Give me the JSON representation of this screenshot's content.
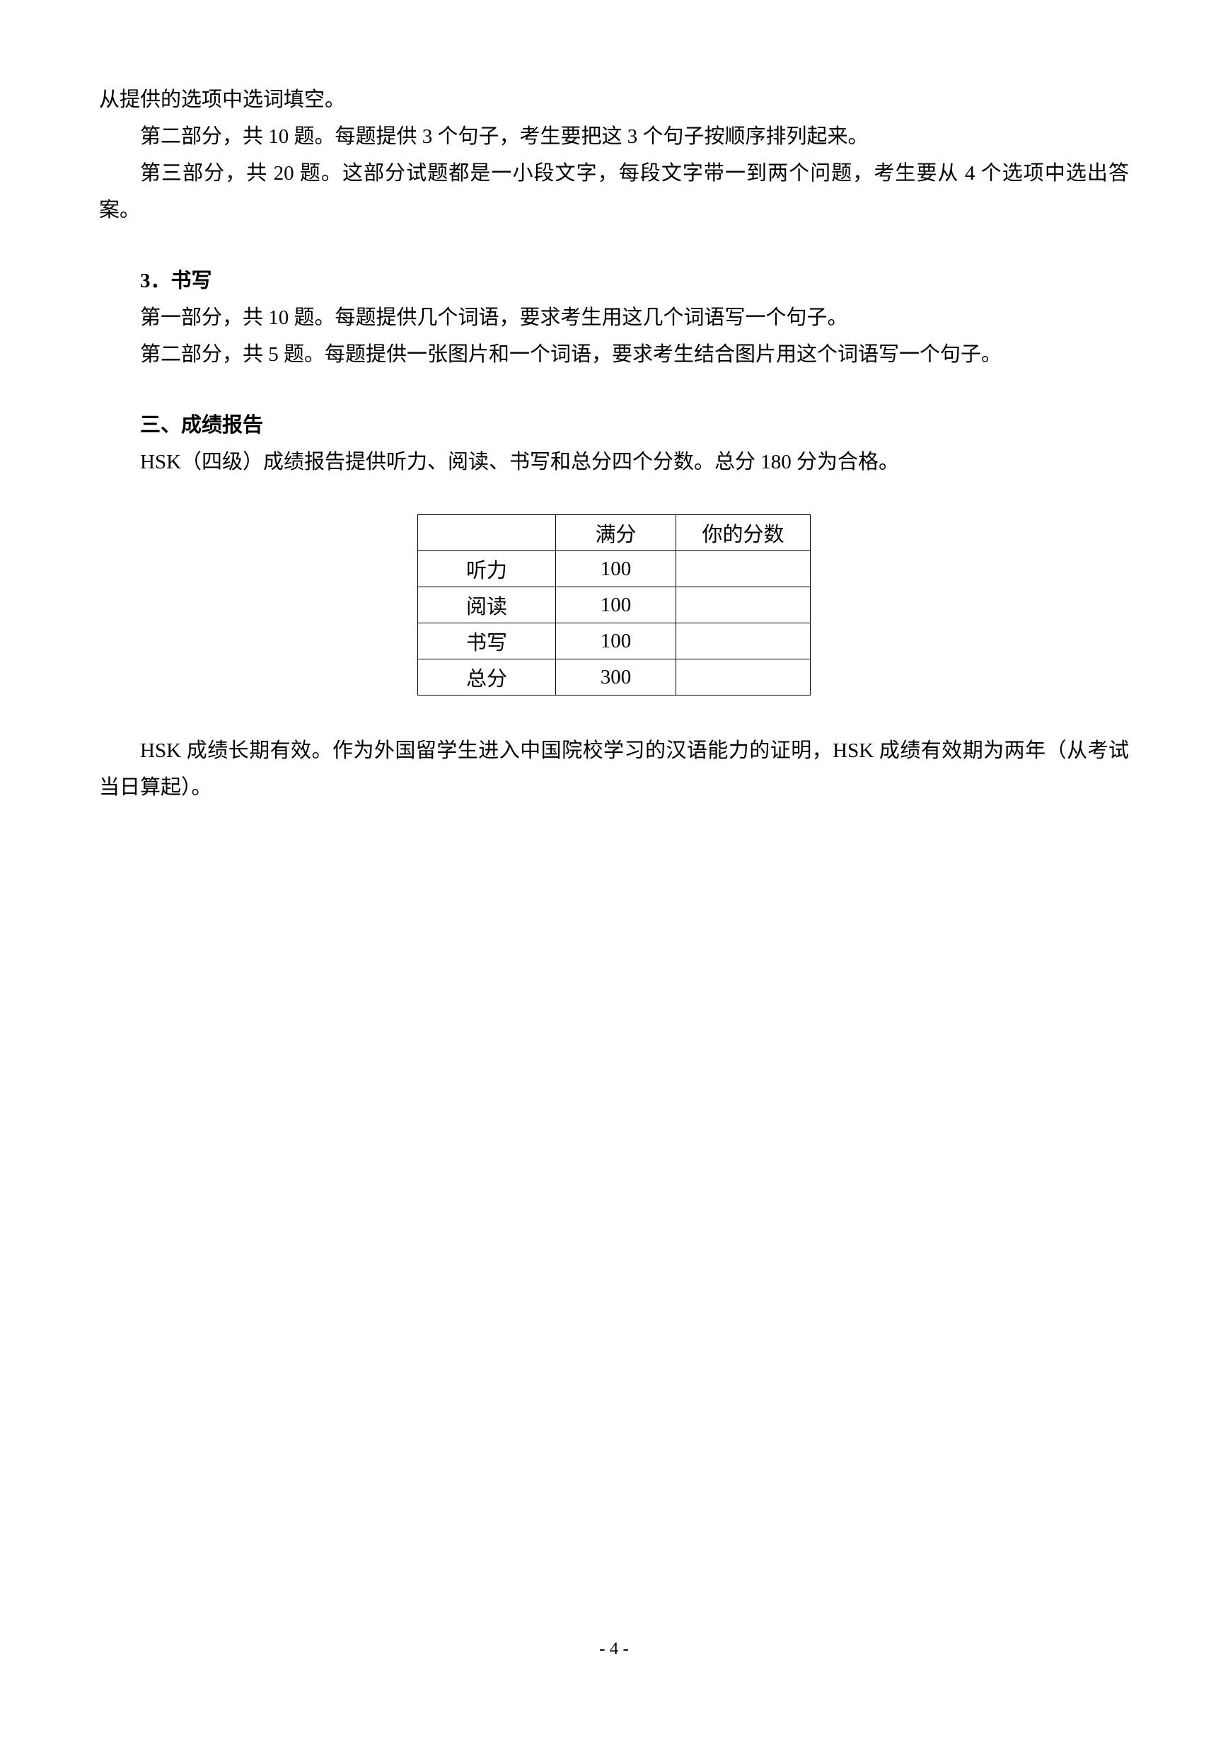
{
  "paragraphs": {
    "p1": "从提供的选项中选词填空。",
    "p2": "第二部分，共 10 题。每题提供 3 个句子，考生要把这 3 个句子按顺序排列起来。",
    "p3": "第三部分，共 20 题。这部分试题都是一小段文字，每段文字带一到两个问题，考生要从 4 个选项中选出答案。",
    "s3_title": "3．书写",
    "s3_p1": "第一部分，共 10 题。每题提供几个词语，要求考生用这几个词语写一个句子。",
    "s3_p2": "第二部分，共 5 题。每题提供一张图片和一个词语，要求考生结合图片用这个词语写一个句子。",
    "section3_title": "三、成绩报告",
    "section3_p1": "HSK（四级）成绩报告提供听力、阅读、书写和总分四个分数。总分 180 分为合格。",
    "after_table_p1": "HSK 成绩长期有效。作为外国留学生进入中国院校学习的汉语能力的证明，HSK 成绩有效期为两年（从考试当日算起）。"
  },
  "table": {
    "header": {
      "col1": "",
      "col2": "满分",
      "col3": "你的分数"
    },
    "rows": [
      {
        "label": "听力",
        "full": "100",
        "score": ""
      },
      {
        "label": "阅读",
        "full": "100",
        "score": ""
      },
      {
        "label": "书写",
        "full": "100",
        "score": ""
      },
      {
        "label": "总分",
        "full": "300",
        "score": ""
      }
    ]
  },
  "page_number": "- 4 -"
}
